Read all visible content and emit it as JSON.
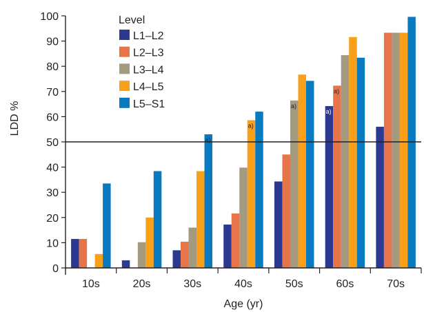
{
  "chart_data": {
    "type": "bar",
    "title": "",
    "xlabel": "Age (yr)",
    "ylabel": "LDD %",
    "ylim": [
      0,
      100
    ],
    "yticks": [
      0,
      10,
      20,
      30,
      40,
      50,
      60,
      70,
      80,
      90,
      100
    ],
    "categories": [
      "10s",
      "20s",
      "30s",
      "40s",
      "50s",
      "60s",
      "70s"
    ],
    "legend_title": "Level",
    "legend_position": "top-left",
    "reference_line": 50,
    "series": [
      {
        "name": "L1–L2",
        "color": "#2b3990",
        "values": [
          11.5,
          3,
          7,
          17.2,
          34.3,
          64.2,
          56
        ]
      },
      {
        "name": "L2–L3",
        "color": "#e8744a",
        "values": [
          11.5,
          0,
          10.4,
          21.6,
          45,
          72.3,
          93.3
        ]
      },
      {
        "name": "L3–L4",
        "color": "#a39a80",
        "values": [
          0,
          10.2,
          16,
          39.8,
          66.4,
          84.4,
          93.3
        ]
      },
      {
        "name": "L4–L5",
        "color": "#f9a01b",
        "values": [
          5.5,
          20,
          38.4,
          58.6,
          76.7,
          91.6,
          93.3
        ]
      },
      {
        "name": "L5–S1",
        "color": "#0a7ac0",
        "values": [
          33.5,
          38.4,
          53,
          62,
          74.2,
          83.4,
          99.6
        ]
      }
    ],
    "annotations": [
      {
        "text": "a)",
        "category": "30s",
        "series": 4
      },
      {
        "text": "a)",
        "category": "40s",
        "series": 3
      },
      {
        "text": "a)",
        "category": "50s",
        "series": 2
      },
      {
        "text": "a)",
        "category": "60s",
        "series": 0
      },
      {
        "text": "a)",
        "category": "60s",
        "series": 1
      }
    ]
  }
}
